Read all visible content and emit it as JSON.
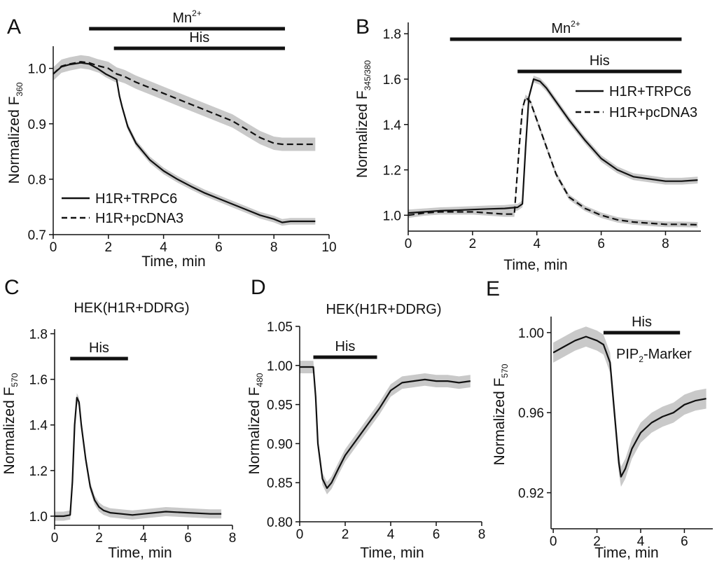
{
  "figure": {
    "panels": [
      {
        "id": "A",
        "letter": "A"
      },
      {
        "id": "B",
        "letter": "B"
      },
      {
        "id": "C",
        "letter": "C"
      },
      {
        "id": "D",
        "letter": "D"
      },
      {
        "id": "E",
        "letter": "E"
      }
    ]
  },
  "chart_data": [
    {
      "panel": "A",
      "type": "line",
      "title": "",
      "xlabel": "Time, min",
      "ylabel_main": "Normalized F",
      "ylabel_sub": "360",
      "xlim": [
        0,
        10
      ],
      "ylim": [
        0.7,
        1.04
      ],
      "xticks": [
        0,
        2,
        4,
        6,
        8,
        10
      ],
      "yticks": [
        0.7,
        0.8,
        0.9,
        1.0
      ],
      "ytick_labels": [
        "0.7",
        "0.8",
        "0.9",
        "1.0"
      ],
      "bars": [
        {
          "label": "Mn",
          "superscript": "2+",
          "x": [
            1.3,
            8.4
          ],
          "level": 1
        },
        {
          "label": "His",
          "superscript": "",
          "x": [
            2.2,
            8.4
          ],
          "level": 2
        }
      ],
      "legend": {
        "position": "bottom-left",
        "entries": [
          "H1R+TRPC6",
          "H1R+pcDNA3"
        ]
      },
      "series": [
        {
          "name": "H1R+TRPC6",
          "style": "solid",
          "error_band": 0.006,
          "x": [
            0,
            0.3,
            0.6,
            1,
            1.3,
            1.6,
            1.9,
            2.1,
            2.3,
            2.4,
            2.5,
            2.7,
            3,
            3.5,
            4,
            4.5,
            5,
            5.5,
            6,
            6.5,
            7,
            7.5,
            8,
            8.3,
            8.6,
            9,
            9.5
          ],
          "y": [
            0.99,
            1.003,
            1.007,
            1.01,
            1.008,
            1.0,
            0.99,
            0.985,
            0.98,
            0.95,
            0.93,
            0.895,
            0.865,
            0.835,
            0.815,
            0.8,
            0.787,
            0.775,
            0.765,
            0.755,
            0.745,
            0.735,
            0.728,
            0.722,
            0.724,
            0.724,
            0.724
          ]
        },
        {
          "name": "H1R+pcDNA3",
          "style": "dashed",
          "error_band": 0.012,
          "x": [
            0,
            0.3,
            0.6,
            1,
            1.3,
            1.6,
            2,
            2.3,
            2.6,
            3,
            3.5,
            4,
            4.5,
            5,
            5.5,
            6,
            6.5,
            7,
            7.5,
            8,
            8.3,
            8.6,
            9,
            9.5
          ],
          "y": [
            0.99,
            1.004,
            1.008,
            1.012,
            1.01,
            1.005,
            1.0,
            0.99,
            0.985,
            0.975,
            0.965,
            0.955,
            0.945,
            0.935,
            0.925,
            0.915,
            0.905,
            0.89,
            0.875,
            0.865,
            0.863,
            0.863,
            0.863,
            0.863
          ]
        }
      ]
    },
    {
      "panel": "B",
      "type": "line",
      "title": "",
      "xlabel": "Time, min",
      "ylabel_main": "Normalized F",
      "ylabel_sub": "345/380",
      "xlim": [
        0,
        9.1
      ],
      "ylim": [
        0.93,
        1.85
      ],
      "xticks": [
        0,
        2,
        4,
        6,
        8
      ],
      "yticks": [
        1.0,
        1.2,
        1.4,
        1.6,
        1.8
      ],
      "ytick_labels": [
        "1.0",
        "1.2",
        "1.4",
        "1.6",
        "1.8"
      ],
      "bars": [
        {
          "label": "Mn",
          "superscript": "2+",
          "x": [
            1.3,
            8.5
          ],
          "level": 1
        },
        {
          "label": "His",
          "superscript": "",
          "x": [
            3.4,
            8.5
          ],
          "level": 2
        }
      ],
      "legend": {
        "position": "top-right",
        "entries": [
          "H1R+TRPC6",
          "H1R+pcDNA3"
        ]
      },
      "series": [
        {
          "name": "H1R+TRPC6",
          "style": "solid",
          "error_band": 0.015,
          "x": [
            0,
            0.5,
            1,
            1.5,
            2,
            2.5,
            3,
            3.4,
            3.55,
            3.65,
            3.75,
            3.9,
            4.1,
            4.3,
            4.6,
            5,
            5.5,
            6,
            6.5,
            7,
            7.5,
            8,
            8.5,
            9
          ],
          "y": [
            1.01,
            1.015,
            1.02,
            1.022,
            1.025,
            1.028,
            1.03,
            1.035,
            1.05,
            1.3,
            1.52,
            1.6,
            1.59,
            1.56,
            1.5,
            1.42,
            1.33,
            1.25,
            1.2,
            1.17,
            1.16,
            1.15,
            1.15,
            1.155
          ]
        },
        {
          "name": "H1R+pcDNA3",
          "style": "dashed",
          "error_band": 0.012,
          "x": [
            0,
            0.5,
            1,
            1.5,
            2,
            2.5,
            3,
            3.3,
            3.45,
            3.55,
            3.65,
            3.8,
            4,
            4.3,
            4.6,
            5,
            5.5,
            6,
            6.5,
            7,
            7.5,
            8,
            8.5,
            9
          ],
          "y": [
            1.0,
            1.01,
            1.015,
            1.015,
            1.015,
            1.01,
            1.005,
            1.005,
            1.3,
            1.47,
            1.52,
            1.5,
            1.42,
            1.3,
            1.18,
            1.08,
            1.03,
            1.0,
            0.98,
            0.97,
            0.965,
            0.96,
            0.96,
            0.958
          ]
        }
      ]
    },
    {
      "panel": "C",
      "type": "line",
      "title": "HEK(H1R+DDRG)",
      "xlabel": "Time, min",
      "ylabel_main": "Normalized F",
      "ylabel_sub": "570",
      "xlim": [
        0,
        8
      ],
      "ylim": [
        0.96,
        1.82
      ],
      "xticks": [
        0,
        2,
        4,
        6,
        8
      ],
      "yticks": [
        1.0,
        1.2,
        1.4,
        1.6,
        1.8
      ],
      "ytick_labels": [
        "1.0",
        "1.2",
        "1.4",
        "1.6",
        "1.8"
      ],
      "bars": [
        {
          "label": "His",
          "superscript": "",
          "x": [
            0.7,
            3.3
          ],
          "level": 1
        }
      ],
      "series": [
        {
          "name": "HEK(H1R+DDRG)",
          "style": "solid",
          "error_band": 0.02,
          "x": [
            0,
            0.4,
            0.7,
            0.8,
            0.9,
            1.0,
            1.1,
            1.2,
            1.4,
            1.6,
            1.8,
            2.0,
            2.2,
            2.5,
            3.0,
            3.5,
            4,
            5,
            6,
            7,
            7.5
          ],
          "y": [
            1.0,
            1.0,
            1.005,
            1.15,
            1.4,
            1.52,
            1.5,
            1.4,
            1.25,
            1.13,
            1.07,
            1.04,
            1.025,
            1.015,
            1.01,
            1.005,
            1.01,
            1.02,
            1.015,
            1.01,
            1.01
          ]
        }
      ]
    },
    {
      "panel": "D",
      "type": "line",
      "title": "HEK(H1R+DDRG)",
      "xlabel": "Time, min",
      "ylabel_main": "Normalized F",
      "ylabel_sub": "480",
      "xlim": [
        0,
        8
      ],
      "ylim": [
        0.8,
        1.05
      ],
      "xticks": [
        0,
        2,
        4,
        6,
        8
      ],
      "yticks": [
        0.8,
        0.85,
        0.9,
        0.95,
        1.0,
        1.05
      ],
      "ytick_labels": [
        "0.80",
        "0.85",
        "0.90",
        "0.95",
        "1.00",
        "1.05"
      ],
      "bars": [
        {
          "label": "His",
          "superscript": "",
          "x": [
            0.6,
            3.4
          ],
          "level": 1
        }
      ],
      "series": [
        {
          "name": "HEK(H1R+DDRG)",
          "style": "solid",
          "error_band": 0.008,
          "x": [
            0,
            0.3,
            0.6,
            0.7,
            0.8,
            1.0,
            1.2,
            1.4,
            1.7,
            2.0,
            2.5,
            3.0,
            3.5,
            4.0,
            4.5,
            5,
            5.5,
            6,
            6.5,
            7,
            7.5
          ],
          "y": [
            0.998,
            0.998,
            0.998,
            0.96,
            0.9,
            0.855,
            0.843,
            0.85,
            0.868,
            0.885,
            0.905,
            0.925,
            0.945,
            0.968,
            0.978,
            0.98,
            0.982,
            0.98,
            0.98,
            0.978,
            0.98
          ]
        }
      ]
    },
    {
      "panel": "E",
      "type": "line",
      "title": "",
      "xlabel": "Time, min",
      "ylabel_main": "Normalized F",
      "ylabel_sub": "570",
      "xlim": [
        -0.1,
        7.3
      ],
      "ylim": [
        0.902,
        1.008
      ],
      "xticks": [
        0,
        2,
        4,
        6
      ],
      "yticks": [
        0.92,
        0.96,
        1.0
      ],
      "ytick_labels": [
        "0.92",
        "0.96",
        "1.00"
      ],
      "bars": [
        {
          "label": "His",
          "superscript": "",
          "x": [
            2.3,
            5.8
          ],
          "level": 1
        }
      ],
      "annotation": {
        "main": "PIP",
        "sub": "2",
        "rest": "-Marker"
      },
      "series": [
        {
          "name": "PIP2-Marker",
          "style": "solid",
          "error_band": 0.005,
          "x": [
            0,
            0.5,
            1,
            1.5,
            2,
            2.3,
            2.6,
            2.8,
            3.0,
            3.1,
            3.3,
            3.6,
            4.0,
            4.5,
            5.0,
            5.5,
            6,
            6.5,
            7
          ],
          "y": [
            0.99,
            0.993,
            0.996,
            0.998,
            0.996,
            0.994,
            0.985,
            0.96,
            0.935,
            0.928,
            0.932,
            0.942,
            0.95,
            0.955,
            0.958,
            0.96,
            0.964,
            0.966,
            0.967
          ]
        }
      ]
    }
  ]
}
